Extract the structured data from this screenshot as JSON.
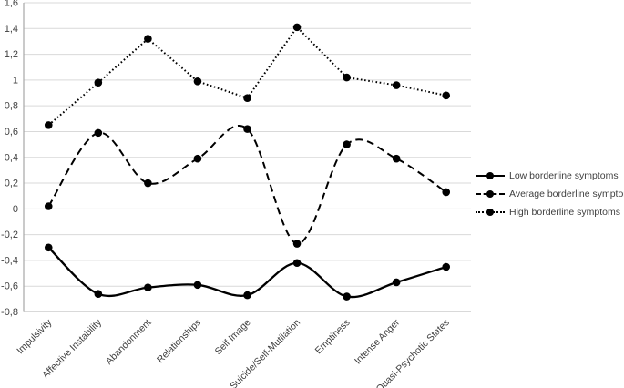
{
  "chart_data": {
    "type": "line",
    "title": "",
    "xlabel": "",
    "ylabel": "",
    "categories": [
      "Impulsivity",
      "Affective Instability",
      "Abandonment",
      "Relationships",
      "Self Image",
      "Suicide/Self-Mutilation",
      "Emptiness",
      "Intense Anger",
      "Quasi-Psychotic States"
    ],
    "series": [
      {
        "name": "Low borderline symptoms",
        "style": "solid",
        "smooth": true,
        "marker": "circle",
        "values": [
          -0.3,
          -0.66,
          -0.61,
          -0.59,
          -0.67,
          -0.42,
          -0.68,
          -0.57,
          -0.45
        ]
      },
      {
        "name": "Average borderline symptoms",
        "style": "dashed",
        "smooth": true,
        "marker": "circle",
        "values": [
          0.02,
          0.59,
          0.2,
          0.39,
          0.62,
          -0.27,
          0.5,
          0.39,
          0.13
        ]
      },
      {
        "name": "High borderline symptoms",
        "style": "dotted",
        "smooth": false,
        "marker": "circle",
        "values": [
          0.65,
          0.98,
          1.32,
          0.99,
          0.86,
          1.41,
          1.02,
          0.96,
          0.88
        ]
      }
    ],
    "ylim": [
      -0.8,
      1.6
    ],
    "ytick_step": 0.2,
    "ytick_labels": [
      "1,6",
      "1,4",
      "1,2",
      "1",
      "0,8",
      "0,6",
      "0,4",
      "0,2",
      "0",
      "-0,2",
      "-0,4",
      "-0,6",
      "-0,8"
    ],
    "grid": true,
    "legend_position": "right",
    "colors": {
      "series_color": "#000000",
      "gridline": "#d9d9d9",
      "axis_line": "#a6a6a6",
      "label_text": "#404040"
    }
  }
}
